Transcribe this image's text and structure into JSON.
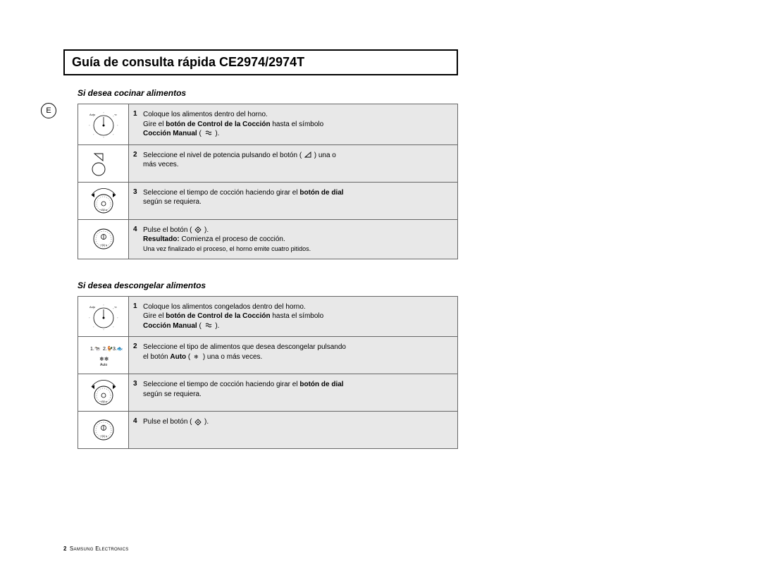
{
  "title": "Guía de consulta rápida CE2974/2974T",
  "side_marker": "E",
  "sections": [
    {
      "title": "Si desea cocinar alimentos",
      "steps": [
        {
          "num": "1",
          "icon": "dial-modes",
          "lines": [
            {
              "t": "Coloque los alimentos dentro del horno."
            },
            {
              "parts": [
                "Gire el ",
                {
                  "b": "botón de Control de la Cocción"
                },
                " hasta el símbolo"
              ]
            },
            {
              "parts": [
                {
                  "b": "Cocción Manual"
                },
                " ( ",
                {
                  "icon": "manual"
                },
                " )."
              ]
            }
          ]
        },
        {
          "num": "2",
          "icon": "power-level",
          "lines": [
            {
              "parts": [
                "Seleccione el nivel de potencia pulsando el botón ( ",
                {
                  "icon": "triangle"
                },
                " ) una o"
              ]
            },
            {
              "t": "más veces."
            }
          ]
        },
        {
          "num": "3",
          "icon": "dial-time",
          "lines": [
            {
              "parts": [
                "Seleccione el tiempo de cocción haciendo girar el ",
                {
                  "b": "botón de dial"
                }
              ]
            },
            {
              "t": "según se requiera."
            }
          ]
        },
        {
          "num": "4",
          "icon": "start-btn",
          "lines": [
            {
              "parts": [
                "Pulse el botón ( ",
                {
                  "icon": "start"
                },
                " )."
              ]
            },
            {
              "parts": [
                {
                  "b": "Resultado:"
                },
                "  Comienza el proceso de cocción."
              ]
            },
            {
              "t": "                    Una vez finalizado el proceso, el horno emite cuatro pitidos.",
              "small": true
            }
          ]
        }
      ]
    },
    {
      "title": "Si desea descongelar alimentos",
      "steps": [
        {
          "num": "1",
          "icon": "dial-modes",
          "lines": [
            {
              "t": "Coloque los alimentos congelados dentro del horno."
            },
            {
              "parts": [
                "Gire el ",
                {
                  "b": "botón de Control de la Cocción"
                },
                " hasta el símbolo"
              ]
            },
            {
              "parts": [
                {
                  "b": "Cocción Manual"
                },
                " ( ",
                {
                  "icon": "manual"
                },
                " )."
              ]
            }
          ]
        },
        {
          "num": "2",
          "icon": "food-types",
          "lines": [
            {
              "t": "Seleccione el tipo de alimentos que desea descongelar pulsando"
            },
            {
              "parts": [
                "el botón ",
                {
                  "b": "Auto"
                },
                " ( ",
                {
                  "icon": "auto"
                },
                " ) una o más veces."
              ]
            }
          ]
        },
        {
          "num": "3",
          "icon": "dial-time",
          "lines": [
            {
              "parts": [
                "Seleccione el tiempo de cocción haciendo girar el ",
                {
                  "b": "botón de dial"
                }
              ]
            },
            {
              "t": "según se requiera."
            }
          ]
        },
        {
          "num": "4",
          "icon": "start-btn",
          "lines": [
            {
              "parts": [
                "Pulse el botón ( ",
                {
                  "icon": "start"
                },
                " )."
              ]
            }
          ]
        }
      ]
    }
  ],
  "footer": {
    "page": "2",
    "brand": "Samsung Electronics"
  },
  "colors": {
    "page_bg": "#ffffff",
    "step_bg": "#e8e8e8",
    "border": "#666666",
    "text": "#000000"
  }
}
